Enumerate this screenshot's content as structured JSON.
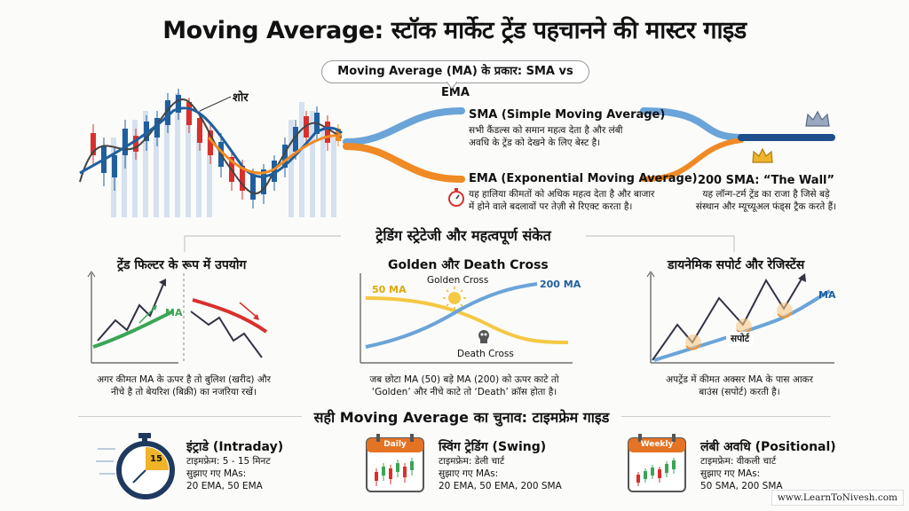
{
  "title": "Moving Average: स्टॉक मार्केट ट्रेंड पहचानने की मास्टर गाइड",
  "types_pill": "Moving Average (MA) के प्रकार: SMA vs EMA",
  "noise_label": "शोर",
  "sma": {
    "title": "SMA (Simple Moving Average)",
    "desc1": "सभी कैंडल्स को समान महत्व देता है और लंबी",
    "desc2": "अवधि के ट्रेंड को देखने के लिए बेस्ट है।"
  },
  "ema": {
    "title": "EMA (Exponential Moving Average)",
    "desc1": "यह हालिया कीमतों को अधिक महत्व देता है और बाजार",
    "desc2": "में होने वाले बदलावों पर तेज़ी से रिएक्ट करता है।"
  },
  "sma200": {
    "title": "200 SMA: “The Wall”",
    "desc1": "यह लॉन्ग-टर्म ट्रेंड का राजा है जिसे बड़े",
    "desc2": "संस्थान और म्यूच्यूअल फंड्स ट्रैक करते हैं।"
  },
  "strategy_heading": "ट्रेडिंग स्ट्रेटेजी और महत्वपूर्ण संकेत",
  "panels": {
    "filter": {
      "title": "ट्रेंड फिल्टर के रूप में उपयोग",
      "ma_label": "MA",
      "desc1": "अगर कीमत MA के ऊपर है तो बुलिश (खरीद) और",
      "desc2": "नीचे है तो बेयरिश (बिक्री) का नजरिया रखें।"
    },
    "cross": {
      "title": "Golden और Death Cross",
      "ma50": "50 MA",
      "ma200": "200 MA",
      "golden": "Golden Cross",
      "death": "Death Cross",
      "desc1": "जब छोटा MA (50) बड़े MA (200) को ऊपर काटे तो",
      "desc2": "‘Golden’ और नीचे काटे तो ‘Death’ क्रॉस होता है।"
    },
    "support": {
      "title": "डायनेमिक सपोर्ट और रेजिस्टेंस",
      "ma_label": "MA",
      "support_label": "सपोर्ट",
      "desc1": "अपट्रेंड में कीमत अक्सर MA के पास आकर",
      "desc2": "बाउंस (सपोर्ट) करती है।"
    }
  },
  "timeframe_heading": "सही Moving Average का चुनाव: टाइमफ्रेम गाइड",
  "timeframes": [
    {
      "title": "इंट्राडे (Intraday)",
      "frame": "टाइमफ्रेम: 5 - 15 मिनट",
      "suggest": "सुझाए गए MAs:",
      "mas": "20 EMA, 50 EMA",
      "badge": "15"
    },
    {
      "title": "स्विंग ट्रेडिंग (Swing)",
      "frame": "टाइमफ्रेम: डेली चार्ट",
      "suggest": "सुझाए गए MAs:",
      "mas": "20 EMA, 50 EMA, 200 SMA",
      "badge": "Daily"
    },
    {
      "title": "लंबी अवधि (Positional)",
      "frame": "टाइमफ्रेम: वीकली चार्ट",
      "suggest": "सुझाए गए MAs:",
      "mas": "50 SMA, 200 SMA",
      "badge": "Weekly"
    }
  ],
  "website": "www.LearnToNivesh.com",
  "colors": {
    "sma_blue": "#1f5f9e",
    "ema_orange": "#f08a24",
    "bull_green": "#3aa655",
    "bear_red": "#d9302c",
    "accent_gold": "#f0b429"
  }
}
